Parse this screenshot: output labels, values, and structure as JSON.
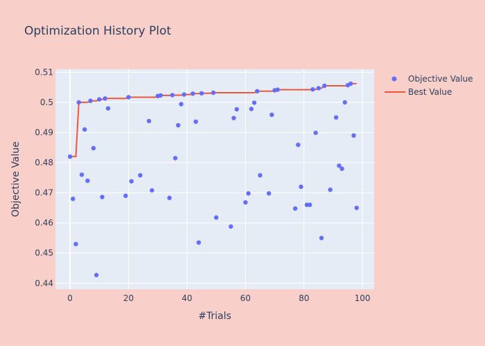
{
  "chart_data": {
    "type": "scatter",
    "title": "Optimization History Plot",
    "xlabel": "#Trials",
    "ylabel": "Objective Value",
    "xlim": [
      -5,
      104
    ],
    "ylim": [
      0.438,
      0.511
    ],
    "x_ticks": [
      0,
      20,
      40,
      60,
      80,
      100
    ],
    "y_ticks": [
      0.44,
      0.45,
      0.46,
      0.47,
      0.48,
      0.49,
      0.5,
      0.51
    ],
    "y_tick_labels": [
      "0.44",
      "0.45",
      "0.46",
      "0.47",
      "0.48",
      "0.49",
      "0.5",
      "0.51"
    ],
    "grid": true,
    "legend_position": "top-right",
    "colors": {
      "background": "#f9d0c9",
      "plot_bg": "#e5ecf6",
      "grid": "#ffffff",
      "objective": "#636efa",
      "best": "#ef553b"
    },
    "series": [
      {
        "name": "Objective Value",
        "mode": "markers",
        "points": [
          [
            0,
            0.482
          ],
          [
            1,
            0.468
          ],
          [
            2,
            0.453
          ],
          [
            3,
            0.5
          ],
          [
            4,
            0.476
          ],
          [
            5,
            0.491
          ],
          [
            6,
            0.474
          ],
          [
            7,
            0.5005
          ],
          [
            8,
            0.4848
          ],
          [
            9,
            0.4427
          ],
          [
            10,
            0.501
          ],
          [
            11,
            0.4686
          ],
          [
            12,
            0.5013
          ],
          [
            13,
            0.498
          ],
          [
            19,
            0.469
          ],
          [
            20,
            0.5017
          ],
          [
            21,
            0.4738
          ],
          [
            24,
            0.4758
          ],
          [
            27,
            0.4938
          ],
          [
            28,
            0.4708
          ],
          [
            30,
            0.5021
          ],
          [
            31,
            0.5023
          ],
          [
            34,
            0.4683
          ],
          [
            35,
            0.5024
          ],
          [
            36,
            0.4815
          ],
          [
            37,
            0.4924
          ],
          [
            38,
            0.4994
          ],
          [
            39,
            0.5026
          ],
          [
            42,
            0.5029
          ],
          [
            43,
            0.4936
          ],
          [
            44,
            0.4535
          ],
          [
            45,
            0.503
          ],
          [
            49,
            0.5032
          ],
          [
            50,
            0.4618
          ],
          [
            55,
            0.4588
          ],
          [
            56,
            0.4948
          ],
          [
            57,
            0.4977
          ],
          [
            60,
            0.4668
          ],
          [
            61,
            0.4698
          ],
          [
            62,
            0.4978
          ],
          [
            63,
            0.4999
          ],
          [
            64,
            0.5037
          ],
          [
            65,
            0.4758
          ],
          [
            68,
            0.4698
          ],
          [
            69,
            0.4959
          ],
          [
            70,
            0.504
          ],
          [
            71,
            0.5042
          ],
          [
            77,
            0.4648
          ],
          [
            78,
            0.4859
          ],
          [
            79,
            0.472
          ],
          [
            81,
            0.466
          ],
          [
            82,
            0.466
          ],
          [
            83,
            0.5043
          ],
          [
            84,
            0.4899
          ],
          [
            85,
            0.5047
          ],
          [
            86,
            0.455
          ],
          [
            87,
            0.5055
          ],
          [
            89,
            0.471
          ],
          [
            91,
            0.495
          ],
          [
            92,
            0.479
          ],
          [
            93,
            0.478
          ],
          [
            94,
            0.5
          ],
          [
            95,
            0.5057
          ],
          [
            96,
            0.5062
          ],
          [
            97,
            0.489
          ],
          [
            98,
            0.465
          ]
        ]
      },
      {
        "name": "Best Value",
        "mode": "line",
        "points": [
          [
            0,
            0.482
          ],
          [
            2,
            0.482
          ],
          [
            3,
            0.5
          ],
          [
            6,
            0.5
          ],
          [
            7,
            0.5005
          ],
          [
            9,
            0.5005
          ],
          [
            10,
            0.501
          ],
          [
            11,
            0.501
          ],
          [
            12,
            0.5013
          ],
          [
            19,
            0.5013
          ],
          [
            20,
            0.5017
          ],
          [
            29,
            0.5017
          ],
          [
            30,
            0.5021
          ],
          [
            31,
            0.5023
          ],
          [
            34,
            0.5023
          ],
          [
            35,
            0.5024
          ],
          [
            38,
            0.5024
          ],
          [
            39,
            0.5026
          ],
          [
            41,
            0.5026
          ],
          [
            42,
            0.5029
          ],
          [
            44,
            0.5029
          ],
          [
            45,
            0.503
          ],
          [
            48,
            0.503
          ],
          [
            49,
            0.5032
          ],
          [
            63,
            0.5032
          ],
          [
            64,
            0.5037
          ],
          [
            69,
            0.5037
          ],
          [
            70,
            0.504
          ],
          [
            71,
            0.5042
          ],
          [
            82,
            0.5042
          ],
          [
            83,
            0.5043
          ],
          [
            84,
            0.5043
          ],
          [
            85,
            0.5047
          ],
          [
            86,
            0.5047
          ],
          [
            87,
            0.5055
          ],
          [
            94,
            0.5055
          ],
          [
            95,
            0.5057
          ],
          [
            96,
            0.5062
          ],
          [
            98,
            0.5062
          ]
        ]
      }
    ]
  }
}
